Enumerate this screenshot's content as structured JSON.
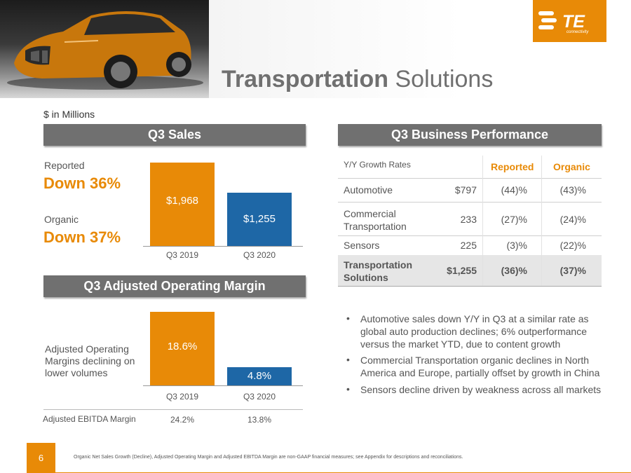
{
  "header": {
    "title_bold": "Transportation",
    "title_rest": " Solutions",
    "logo_text": "TE",
    "logo_sub": "connectivity"
  },
  "units_label": "$ in Millions",
  "sales": {
    "heading": "Q3 Sales",
    "reported_label": "Reported",
    "reported_value": "Down 36%",
    "organic_label": "Organic",
    "organic_value": "Down 37%",
    "chart_data": {
      "type": "bar",
      "categories": [
        "Q3 2019",
        "Q3 2020"
      ],
      "values": [
        1968,
        1255
      ],
      "value_labels": [
        "$1,968",
        "$1,255"
      ],
      "colors": [
        "#e88a07",
        "#1e67a6"
      ]
    }
  },
  "margin": {
    "heading": "Q3 Adjusted Operating Margin",
    "note": "Adjusted Operating Margins declining on lower volumes",
    "chart_data": {
      "type": "bar",
      "categories": [
        "Q3 2019",
        "Q3 2020"
      ],
      "values": [
        18.6,
        4.8
      ],
      "value_labels": [
        "18.6%",
        "4.8%"
      ],
      "colors": [
        "#e88a07",
        "#1e67a6"
      ]
    },
    "ebitda_label": "Adjusted EBITDA Margin",
    "ebitda_values": [
      "24.2%",
      "13.8%"
    ]
  },
  "performance": {
    "heading": "Q3 Business Performance",
    "columns": {
      "label": "Y/Y Growth Rates",
      "reported": "Reported",
      "organic": "Organic"
    },
    "rows": [
      {
        "name": "Automotive",
        "amount": "$797",
        "reported": "(44)%",
        "organic": "(43)%"
      },
      {
        "name": "Commercial Transportation",
        "amount": "233",
        "reported": "(27)%",
        "organic": "(24)%"
      },
      {
        "name": "Sensors",
        "amount": "225",
        "reported": "(3)%",
        "organic": "(22)%"
      },
      {
        "name": "Transportation Solutions",
        "amount": "$1,255",
        "reported": "(36)%",
        "organic": "(37)%"
      }
    ]
  },
  "bullets": [
    "Automotive sales down Y/Y in Q3 at a similar rate as global auto production declines; 6% outperformance versus the market YTD, due to content growth",
    "Commercial Transportation organic declines in North America and Europe, partially offset by growth in China",
    "Sensors decline driven by weakness across all markets"
  ],
  "footer": {
    "page_number": "6",
    "note": "Organic Net Sales Growth (Decline), Adjusted Operating Margin and Adjusted EBITDA Margin are non-GAAP financial measures; see Appendix for descriptions and reconciliations."
  },
  "colors": {
    "accent": "#e88a07",
    "blue": "#1e67a6",
    "heading_gray": "#707070"
  }
}
